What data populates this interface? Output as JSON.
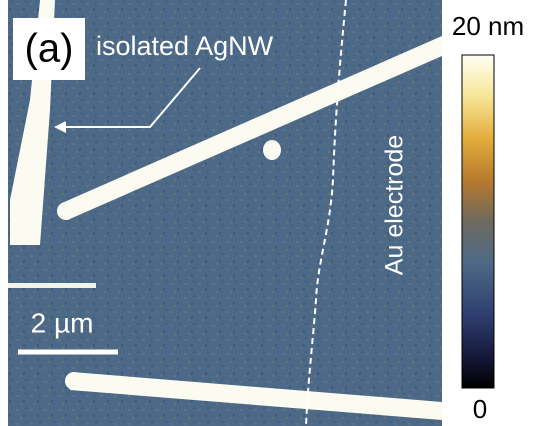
{
  "panel": {
    "label": "(a)",
    "annotations": {
      "wire": "isolated AgNW",
      "electrode": "Au electrode"
    },
    "scale_bar": "2 µm"
  },
  "colorbar": {
    "max_label": "20 nm",
    "min_label": "0"
  }
}
